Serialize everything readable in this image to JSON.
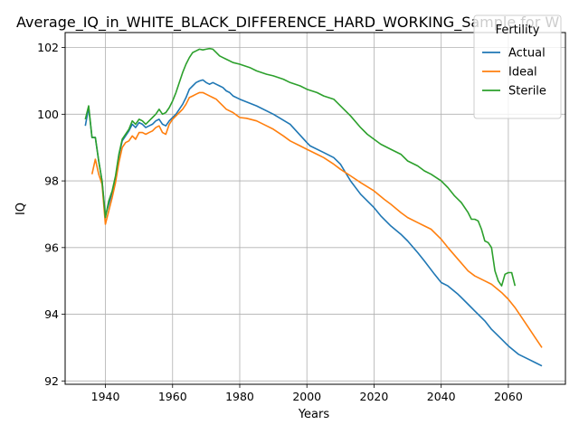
{
  "chart_data": {
    "type": "line",
    "title": "Average_IQ_in_WHITE_BLACK_DIFFERENCE_HARD_WORKING_Sample for W",
    "xlabel": "Years",
    "ylabel": "IQ",
    "xlim": [
      1928,
      2077
    ],
    "ylim": [
      91.9,
      102.45
    ],
    "xticks": [
      1940,
      1960,
      1980,
      2000,
      2020,
      2040,
      2060
    ],
    "yticks": [
      92,
      94,
      96,
      98,
      100,
      102
    ],
    "grid": true,
    "legend": {
      "title": "Fertility",
      "position": "upper right"
    },
    "series": [
      {
        "name": "Actual",
        "color": "#1f77b4",
        "points": [
          [
            1934,
            99.65
          ],
          [
            1935,
            100.2
          ],
          [
            1936,
            99.3
          ],
          [
            1937,
            99.3
          ],
          [
            1938,
            98.6
          ],
          [
            1939,
            98.0
          ],
          [
            1940,
            96.95
          ],
          [
            1941,
            97.3
          ],
          [
            1942,
            97.65
          ],
          [
            1943,
            98.1
          ],
          [
            1944,
            98.75
          ],
          [
            1945,
            99.2
          ],
          [
            1946,
            99.35
          ],
          [
            1947,
            99.5
          ],
          [
            1948,
            99.7
          ],
          [
            1949,
            99.6
          ],
          [
            1950,
            99.75
          ],
          [
            1951,
            99.7
          ],
          [
            1952,
            99.6
          ],
          [
            1953,
            99.65
          ],
          [
            1954,
            99.7
          ],
          [
            1955,
            99.8
          ],
          [
            1956,
            99.85
          ],
          [
            1957,
            99.7
          ],
          [
            1958,
            99.65
          ],
          [
            1959,
            99.8
          ],
          [
            1960,
            99.9
          ],
          [
            1961,
            100.0
          ],
          [
            1962,
            100.15
          ],
          [
            1963,
            100.3
          ],
          [
            1964,
            100.5
          ],
          [
            1965,
            100.75
          ],
          [
            1966,
            100.85
          ],
          [
            1967,
            100.95
          ],
          [
            1968,
            101.0
          ],
          [
            1969,
            101.03
          ],
          [
            1970,
            100.95
          ],
          [
            1971,
            100.9
          ],
          [
            1972,
            100.95
          ],
          [
            1973,
            100.9
          ],
          [
            1974,
            100.85
          ],
          [
            1975,
            100.8
          ],
          [
            1976,
            100.7
          ],
          [
            1977,
            100.65
          ],
          [
            1978,
            100.55
          ],
          [
            1980,
            100.45
          ],
          [
            1985,
            100.25
          ],
          [
            1990,
            100.0
          ],
          [
            1995,
            99.7
          ],
          [
            2000,
            99.15
          ],
          [
            2001,
            99.05
          ],
          [
            2005,
            98.85
          ],
          [
            2008,
            98.7
          ],
          [
            2010,
            98.5
          ],
          [
            2013,
            98.0
          ],
          [
            2016,
            97.6
          ],
          [
            2020,
            97.2
          ],
          [
            2022,
            96.95
          ],
          [
            2025,
            96.65
          ],
          [
            2028,
            96.4
          ],
          [
            2030,
            96.2
          ],
          [
            2033,
            95.85
          ],
          [
            2035,
            95.6
          ],
          [
            2038,
            95.2
          ],
          [
            2040,
            94.95
          ],
          [
            2042,
            94.85
          ],
          [
            2045,
            94.6
          ],
          [
            2048,
            94.3
          ],
          [
            2050,
            94.1
          ],
          [
            2053,
            93.8
          ],
          [
            2055,
            93.55
          ],
          [
            2058,
            93.25
          ],
          [
            2060,
            93.05
          ],
          [
            2063,
            92.8
          ],
          [
            2066,
            92.65
          ],
          [
            2068,
            92.55
          ],
          [
            2070,
            92.45
          ]
        ]
      },
      {
        "name": "Ideal",
        "color": "#ff7f0e",
        "points": [
          [
            1936,
            98.2
          ],
          [
            1937,
            98.65
          ],
          [
            1938,
            98.2
          ],
          [
            1939,
            97.9
          ],
          [
            1940,
            96.7
          ],
          [
            1941,
            97.1
          ],
          [
            1942,
            97.5
          ],
          [
            1943,
            97.95
          ],
          [
            1944,
            98.55
          ],
          [
            1945,
            99.0
          ],
          [
            1946,
            99.15
          ],
          [
            1947,
            99.2
          ],
          [
            1948,
            99.35
          ],
          [
            1949,
            99.25
          ],
          [
            1950,
            99.45
          ],
          [
            1951,
            99.45
          ],
          [
            1952,
            99.4
          ],
          [
            1953,
            99.45
          ],
          [
            1954,
            99.5
          ],
          [
            1955,
            99.6
          ],
          [
            1956,
            99.65
          ],
          [
            1957,
            99.45
          ],
          [
            1958,
            99.4
          ],
          [
            1959,
            99.7
          ],
          [
            1960,
            99.85
          ],
          [
            1961,
            99.95
          ],
          [
            1962,
            100.05
          ],
          [
            1963,
            100.15
          ],
          [
            1964,
            100.3
          ],
          [
            1965,
            100.5
          ],
          [
            1966,
            100.55
          ],
          [
            1967,
            100.6
          ],
          [
            1968,
            100.65
          ],
          [
            1969,
            100.65
          ],
          [
            1970,
            100.6
          ],
          [
            1971,
            100.55
          ],
          [
            1972,
            100.5
          ],
          [
            1973,
            100.45
          ],
          [
            1974,
            100.35
          ],
          [
            1975,
            100.25
          ],
          [
            1976,
            100.15
          ],
          [
            1978,
            100.05
          ],
          [
            1980,
            99.9
          ],
          [
            1982,
            99.88
          ],
          [
            1985,
            99.8
          ],
          [
            1988,
            99.65
          ],
          [
            1990,
            99.55
          ],
          [
            1993,
            99.35
          ],
          [
            1995,
            99.2
          ],
          [
            1998,
            99.05
          ],
          [
            2000,
            98.95
          ],
          [
            2003,
            98.8
          ],
          [
            2005,
            98.7
          ],
          [
            2008,
            98.5
          ],
          [
            2010,
            98.35
          ],
          [
            2013,
            98.15
          ],
          [
            2016,
            97.95
          ],
          [
            2020,
            97.7
          ],
          [
            2023,
            97.45
          ],
          [
            2025,
            97.3
          ],
          [
            2028,
            97.05
          ],
          [
            2030,
            96.9
          ],
          [
            2033,
            96.75
          ],
          [
            2035,
            96.65
          ],
          [
            2037,
            96.55
          ],
          [
            2040,
            96.25
          ],
          [
            2042,
            96.0
          ],
          [
            2045,
            95.65
          ],
          [
            2048,
            95.3
          ],
          [
            2050,
            95.15
          ],
          [
            2053,
            95.0
          ],
          [
            2055,
            94.9
          ],
          [
            2058,
            94.65
          ],
          [
            2060,
            94.45
          ],
          [
            2062,
            94.2
          ],
          [
            2064,
            93.9
          ],
          [
            2066,
            93.6
          ],
          [
            2068,
            93.3
          ],
          [
            2070,
            93.0
          ]
        ]
      },
      {
        "name": "Sterile",
        "color": "#2ca02c",
        "points": [
          [
            1934,
            99.85
          ],
          [
            1935,
            100.25
          ],
          [
            1936,
            99.3
          ],
          [
            1937,
            99.3
          ],
          [
            1938,
            98.6
          ],
          [
            1939,
            98.0
          ],
          [
            1940,
            96.9
          ],
          [
            1941,
            97.4
          ],
          [
            1942,
            97.7
          ],
          [
            1943,
            98.15
          ],
          [
            1944,
            98.8
          ],
          [
            1945,
            99.25
          ],
          [
            1946,
            99.4
          ],
          [
            1947,
            99.55
          ],
          [
            1948,
            99.8
          ],
          [
            1949,
            99.7
          ],
          [
            1950,
            99.85
          ],
          [
            1951,
            99.8
          ],
          [
            1952,
            99.7
          ],
          [
            1953,
            99.8
          ],
          [
            1954,
            99.9
          ],
          [
            1955,
            100.0
          ],
          [
            1956,
            100.15
          ],
          [
            1957,
            100.0
          ],
          [
            1958,
            100.05
          ],
          [
            1959,
            100.2
          ],
          [
            1960,
            100.4
          ],
          [
            1961,
            100.65
          ],
          [
            1962,
            100.95
          ],
          [
            1963,
            101.25
          ],
          [
            1964,
            101.5
          ],
          [
            1965,
            101.7
          ],
          [
            1966,
            101.85
          ],
          [
            1967,
            101.9
          ],
          [
            1968,
            101.95
          ],
          [
            1969,
            101.93
          ],
          [
            1970,
            101.95
          ],
          [
            1971,
            101.97
          ],
          [
            1972,
            101.95
          ],
          [
            1973,
            101.85
          ],
          [
            1974,
            101.75
          ],
          [
            1975,
            101.7
          ],
          [
            1976,
            101.65
          ],
          [
            1978,
            101.55
          ],
          [
            1980,
            101.5
          ],
          [
            1983,
            101.4
          ],
          [
            1985,
            101.3
          ],
          [
            1988,
            101.2
          ],
          [
            1990,
            101.15
          ],
          [
            1993,
            101.05
          ],
          [
            1995,
            100.95
          ],
          [
            1998,
            100.85
          ],
          [
            2000,
            100.75
          ],
          [
            2003,
            100.65
          ],
          [
            2005,
            100.55
          ],
          [
            2008,
            100.45
          ],
          [
            2010,
            100.25
          ],
          [
            2013,
            99.95
          ],
          [
            2016,
            99.6
          ],
          [
            2018,
            99.4
          ],
          [
            2020,
            99.25
          ],
          [
            2022,
            99.1
          ],
          [
            2025,
            98.95
          ],
          [
            2028,
            98.8
          ],
          [
            2030,
            98.6
          ],
          [
            2033,
            98.45
          ],
          [
            2035,
            98.3
          ],
          [
            2037,
            98.2
          ],
          [
            2040,
            98.0
          ],
          [
            2042,
            97.8
          ],
          [
            2044,
            97.55
          ],
          [
            2046,
            97.35
          ],
          [
            2048,
            97.05
          ],
          [
            2049,
            96.85
          ],
          [
            2050,
            96.85
          ],
          [
            2051,
            96.8
          ],
          [
            2052,
            96.55
          ],
          [
            2053,
            96.2
          ],
          [
            2054,
            96.15
          ],
          [
            2055,
            96.0
          ],
          [
            2056,
            95.3
          ],
          [
            2057,
            95.0
          ],
          [
            2058,
            94.85
          ],
          [
            2059,
            95.2
          ],
          [
            2060,
            95.25
          ],
          [
            2061,
            95.25
          ],
          [
            2062,
            94.85
          ]
        ]
      }
    ]
  }
}
